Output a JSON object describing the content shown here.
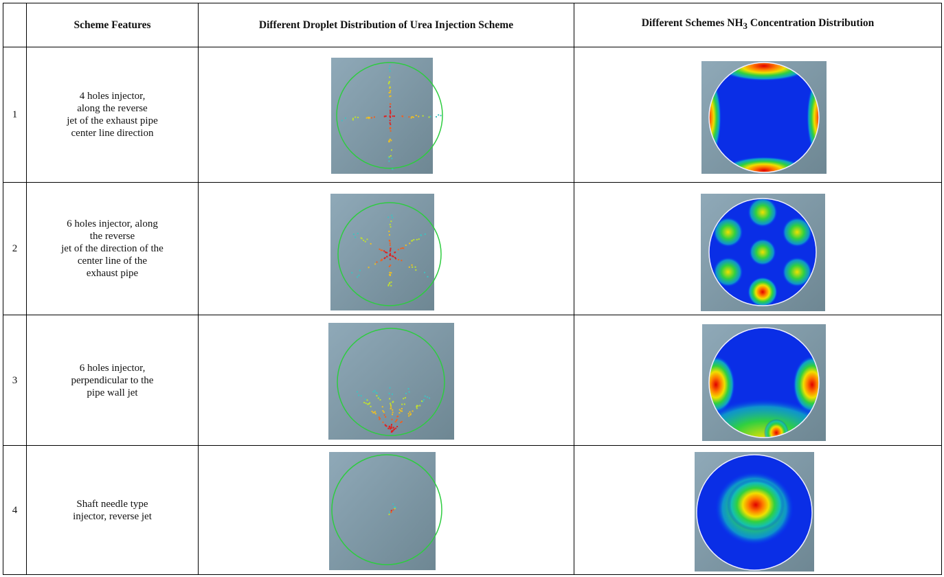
{
  "table": {
    "header": [
      "",
      "Scheme Features",
      "Different Droplet Distribution of Urea Injection Scheme",
      {
        "text": "Different Schemes NH",
        "sub": "3",
        "rest": " Concentration Distribution"
      }
    ],
    "rows": [
      [
        "1",
        "4 holes injector,\nalong the reverse\njet of the exhaust pipe\ncenter line direction"
      ],
      [
        "2",
        "6 holes injector, along\nthe reverse\njet of the direction of the\ncenter line of the\nexhaust pipe"
      ],
      [
        "3",
        "6 holes injector,\nperpendicular to the\npipe wall jet"
      ],
      [
        "4",
        "Shaft needle type\ninjector, reverse jet"
      ]
    ]
  }
}
